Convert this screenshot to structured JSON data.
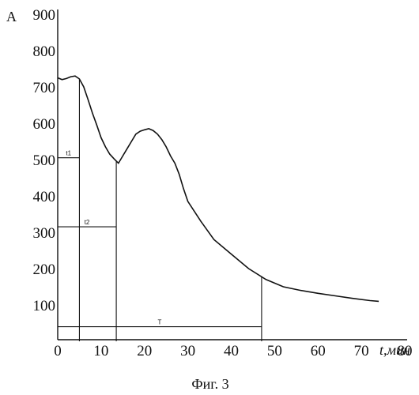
{
  "chart_data": {
    "type": "line",
    "ylabel": "A",
    "xlabel": "t,мин",
    "caption": "Фиг. 3",
    "xlim": [
      0,
      80
    ],
    "ylim": [
      0,
      900
    ],
    "xticks": [
      "0",
      "10",
      "20",
      "30",
      "40",
      "50",
      "60",
      "70",
      "80"
    ],
    "yticks": [
      "100",
      "200",
      "300",
      "400",
      "500",
      "600",
      "700",
      "800",
      "900"
    ],
    "series": [
      {
        "x": [
          0,
          1,
          2,
          3,
          4,
          5,
          6,
          7,
          8,
          9,
          10,
          11,
          12,
          13,
          14,
          15,
          16,
          17,
          18,
          19,
          20,
          21,
          22,
          23,
          24,
          25,
          26,
          27,
          28,
          29,
          30,
          33,
          36,
          40,
          44,
          48,
          52,
          56,
          60,
          64,
          68,
          72,
          74
        ],
        "y": [
          725,
          720,
          723,
          728,
          730,
          722,
          700,
          665,
          628,
          595,
          560,
          535,
          515,
          502,
          490,
          510,
          530,
          550,
          570,
          578,
          582,
          585,
          580,
          570,
          555,
          535,
          510,
          490,
          460,
          420,
          385,
          330,
          280,
          240,
          200,
          170,
          150,
          140,
          132,
          125,
          118,
          112,
          110
        ]
      }
    ],
    "markers": [
      {
        "label": "t1",
        "x": 5,
        "y": 505
      },
      {
        "label": "t2",
        "x": 13.5,
        "y": 315
      },
      {
        "label": "T",
        "x": 47,
        "y": 40
      }
    ]
  }
}
